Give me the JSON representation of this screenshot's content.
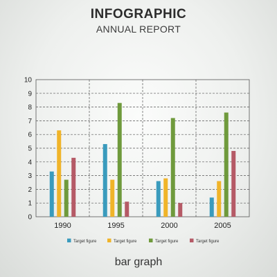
{
  "header": {
    "title": "INFOGRAPHIC",
    "subtitle": "ANNUAL REPORT"
  },
  "footer": {
    "caption": "bar graph"
  },
  "chart_data": {
    "type": "bar",
    "categories": [
      "1990",
      "1995",
      "2000",
      "2005"
    ],
    "series": [
      {
        "name": "Target figure",
        "color": "#3a9bbd",
        "values": [
          3.3,
          5.3,
          2.6,
          1.4
        ]
      },
      {
        "name": "Target figure",
        "color": "#f0b429",
        "values": [
          6.3,
          2.7,
          2.8,
          2.6
        ]
      },
      {
        "name": "Target figure",
        "color": "#6f9a3c",
        "values": [
          2.7,
          8.3,
          7.2,
          7.6
        ]
      },
      {
        "name": "Target figure",
        "color": "#b55a66",
        "values": [
          4.3,
          1.1,
          1.0,
          4.8
        ]
      }
    ],
    "ylim": [
      0,
      10
    ],
    "yticks": [
      "0",
      "1",
      "2",
      "3",
      "4",
      "5",
      "6",
      "7",
      "8",
      "9",
      "10"
    ],
    "grid": true,
    "legend_position": "bottom"
  }
}
